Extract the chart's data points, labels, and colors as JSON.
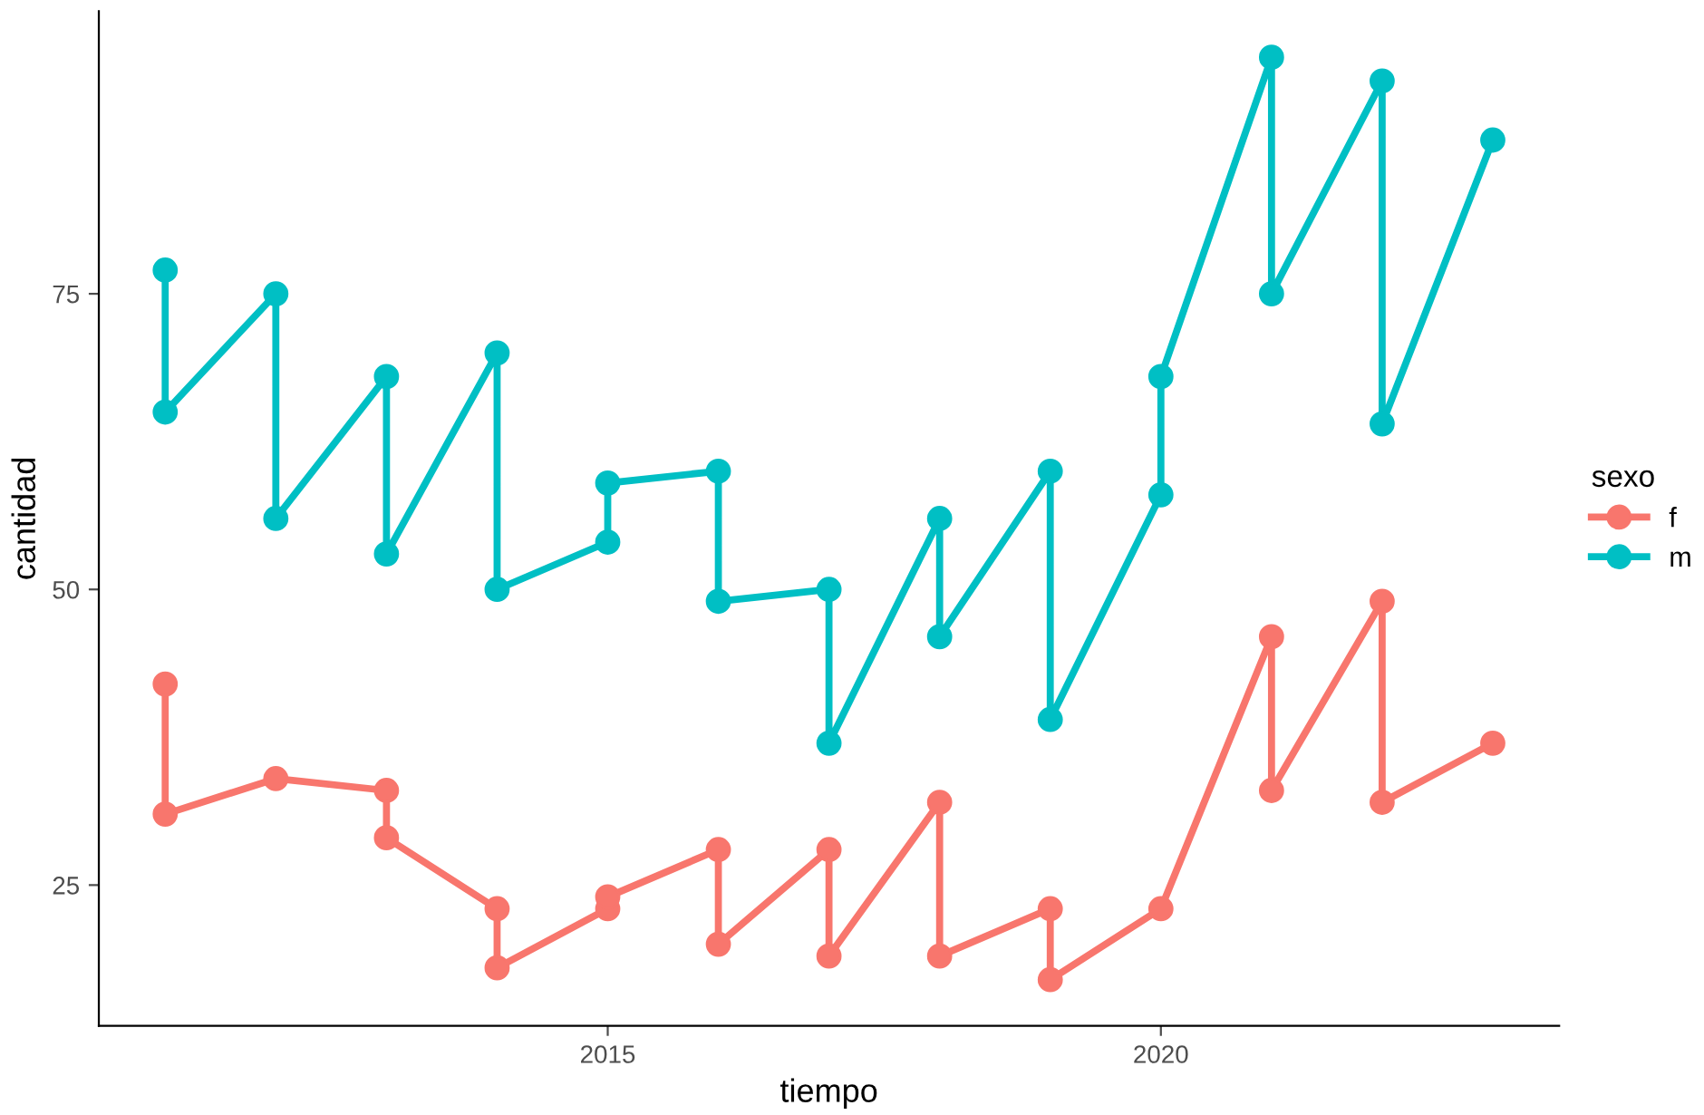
{
  "chart_data": {
    "type": "line",
    "xlabel": "tiempo",
    "ylabel": "cantidad",
    "legend_title": "sexo",
    "legend": "right",
    "marker": "circle",
    "line_style": "solid",
    "grid": false,
    "xlim": [
      2010.4,
      2023.6
    ],
    "xticks": [
      2015,
      2020
    ],
    "ylim": [
      13.1,
      98.9
    ],
    "yticks": [
      25,
      50,
      75
    ],
    "series": [
      {
        "name": "f",
        "color": "#f8766d",
        "x": [
          2011,
          2011,
          2012,
          2013,
          2013,
          2014,
          2014,
          2015,
          2015,
          2016,
          2016,
          2017,
          2017,
          2018,
          2018,
          2019,
          2019,
          2020,
          2021,
          2021,
          2022,
          2022,
          2023
        ],
        "values": [
          42,
          31,
          34,
          33,
          29,
          23,
          18,
          23,
          24,
          28,
          20,
          28,
          19,
          32,
          19,
          23,
          17,
          23,
          46,
          33,
          49,
          32,
          37
        ]
      },
      {
        "name": "m",
        "color": "#00bfc4",
        "x": [
          2011,
          2011,
          2012,
          2012,
          2013,
          2013,
          2014,
          2014,
          2015,
          2015,
          2016,
          2016,
          2017,
          2017,
          2018,
          2018,
          2019,
          2019,
          2020,
          2020,
          2021,
          2021,
          2022,
          2022,
          2023
        ],
        "values": [
          77,
          65,
          75,
          56,
          68,
          53,
          70,
          50,
          54,
          59,
          60,
          49,
          50,
          37,
          56,
          46,
          60,
          39,
          58,
          68,
          95,
          75,
          93,
          64,
          88
        ]
      }
    ]
  }
}
